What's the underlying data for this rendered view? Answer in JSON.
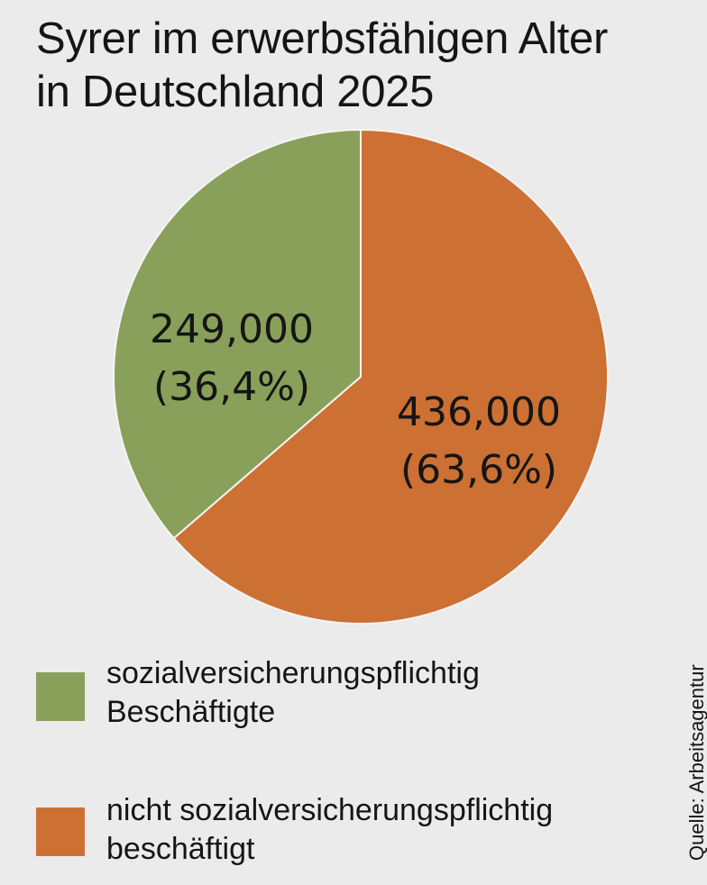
{
  "title": {
    "line1": "Syrer im erwerbsfähigen Alter",
    "line2": "in Deutschland 2025"
  },
  "colors": {
    "background": "#ebebeb",
    "green": "#89a05a",
    "orange": "#cc7033"
  },
  "chart_data": {
    "type": "pie",
    "title": "Syrer im erwerbsfähigen Alter in Deutschland 2025",
    "slices": [
      {
        "value": 249000,
        "percent": 36.4,
        "value_label": "249,000",
        "percent_label": "(36,4%)",
        "legend": [
          "sozialversicherungspflichtig",
          "Beschäftigte"
        ],
        "color": "#89a05a"
      },
      {
        "value": 436000,
        "percent": 63.6,
        "value_label": "436,000",
        "percent_label": "(63,6%)",
        "legend": [
          "nicht sozialversicherungspflichtig",
          "beschäftigt"
        ],
        "color": "#cc7033"
      }
    ],
    "legend_position": "bottom-left"
  },
  "legend": {
    "items": [
      {
        "line1": "sozialversicherungspflichtig",
        "line2": "Beschäftigte",
        "color": "#89a05a"
      },
      {
        "line1": "nicht sozialversicherungspflichtig",
        "line2": "beschäftigt",
        "color": "#cc7033"
      }
    ]
  },
  "source": "Quelle: Arbeitsagentur"
}
